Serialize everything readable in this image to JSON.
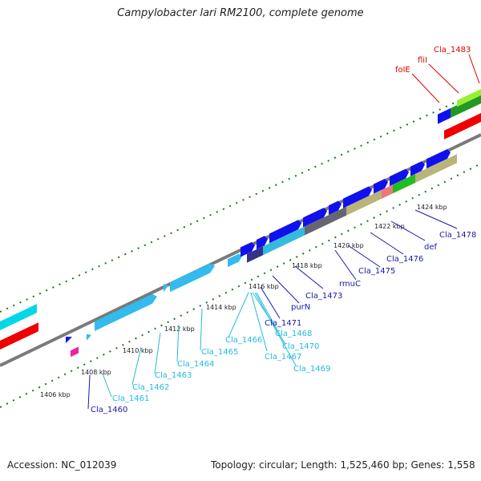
{
  "title": "Campylobacter lari RM2100, complete genome",
  "footer": {
    "accession": "Accession: NC_012039",
    "stats": "Topology: circular; Length: 1,525,460 bp; Genes: 1,558"
  },
  "kbp_labels": [
    "1406 kbp",
    "1408 kbp",
    "1410 kbp",
    "1412 kbp",
    "1414 kbp",
    "1416 kbp",
    "1418 kbp",
    "1420 kbp",
    "1422 kbp",
    "1424 kbp"
  ],
  "gene_labels": {
    "top": [
      "folE",
      "fliI",
      "Cla_1483"
    ],
    "bottom": [
      "Cla_1460",
      "Cla_1461",
      "Cla_1462",
      "Cla_1463",
      "Cla_1464",
      "Cla_1465",
      "Cla_1466",
      "Cla_1467",
      "Cla_1468",
      "Cla_1469",
      "Cla_1470",
      "Cla_1471",
      "purN",
      "Cla_1473",
      "rmuC",
      "Cla_1475",
      "Cla_1476",
      "def",
      "Cla_1478"
    ]
  },
  "colors": {
    "top_labels": "#e00000",
    "cyan_labels": "#22bbdd",
    "blue_labels": "#1a1aa8",
    "dotted": "#1a7a1a",
    "backbone": "#7f7f7f"
  }
}
